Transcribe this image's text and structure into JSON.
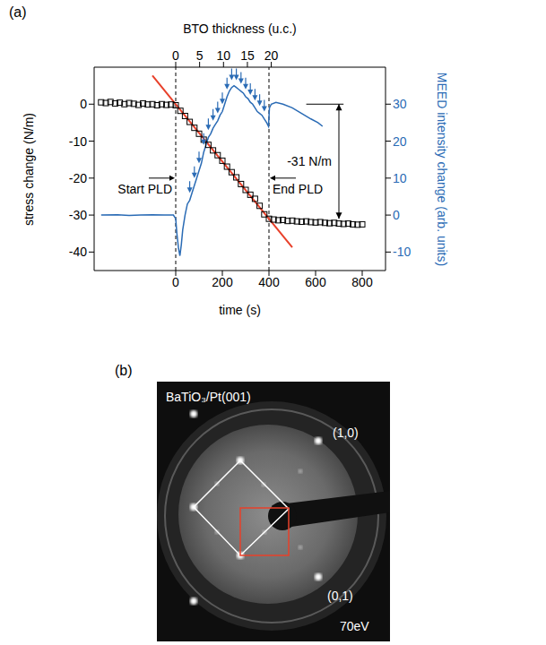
{
  "chart_data": {
    "type": "line",
    "label": "(a)",
    "x_label": "time (s)",
    "x2_label": "BTO thickness (u.c.)",
    "y_label": "stress change (N/m)",
    "y2_label": "MEED intensity change (arb. units)",
    "xlim": [
      -350,
      900
    ],
    "xticks": [
      0,
      200,
      400,
      600,
      800
    ],
    "x2lim": [
      -17.07,
      43.9
    ],
    "x2ticks": [
      0,
      5,
      10,
      15,
      20
    ],
    "ylim": [
      -45,
      10
    ],
    "yticks": [
      -40,
      -30,
      -20,
      -10,
      0
    ],
    "y2lim": [
      -15,
      40
    ],
    "y2ticks": [
      -10,
      0,
      10,
      20,
      30
    ],
    "grid": false,
    "series": [
      {
        "type": "scatter",
        "marker": "square",
        "color": "#000000",
        "x": [
          -320,
          -300,
          -280,
          -260,
          -240,
          -220,
          -200,
          -180,
          -160,
          -140,
          -120,
          -100,
          -80,
          -60,
          -40,
          -20,
          0,
          20,
          40,
          60,
          80,
          100,
          120,
          140,
          160,
          180,
          200,
          220,
          240,
          260,
          280,
          300,
          320,
          340,
          360,
          380,
          400,
          420,
          440,
          460,
          480,
          500,
          520,
          540,
          560,
          580,
          600,
          620,
          640,
          660,
          680,
          700,
          720,
          740,
          760,
          780,
          800
        ],
        "values": [
          0.5,
          0.3,
          0.6,
          0.2,
          0.4,
          0.0,
          0.3,
          0.1,
          -0.2,
          0.2,
          -0.1,
          0.0,
          -0.3,
          0.0,
          -0.2,
          -0.1,
          -0.3,
          -1.8,
          -3.2,
          -4.8,
          -6.4,
          -8.0,
          -9.6,
          -11.0,
          -12.5,
          -13.8,
          -15.3,
          -16.9,
          -18.4,
          -19.8,
          -21.6,
          -23.2,
          -24.5,
          -25.6,
          -27.5,
          -29.8,
          -31.0,
          -31.2,
          -31.4,
          -31.3,
          -31.6,
          -31.5,
          -31.7,
          -31.8,
          -31.7,
          -31.9,
          -32.0,
          -31.9,
          -32.1,
          -32.2,
          -32.1,
          -32.3,
          -32.4,
          -32.3,
          -32.5,
          -32.6,
          -32.5
        ]
      },
      {
        "type": "line",
        "line_style": "solid",
        "color": "#e8402a",
        "x": [
          -100,
          500
        ],
        "values": [
          7.75,
          -38.75
        ]
      },
      {
        "type": "line",
        "line_style": "solid",
        "axis": "y2",
        "color": "#2a6bb5",
        "x": [
          -320,
          -250,
          -200,
          -150,
          -100,
          -50,
          -10,
          0,
          5,
          12,
          18,
          24,
          30,
          40,
          50,
          60,
          70,
          80,
          90,
          100,
          110,
          120,
          130,
          140,
          150,
          160,
          170,
          180,
          190,
          200,
          210,
          220,
          230,
          240,
          250,
          260,
          270,
          280,
          290,
          300,
          310,
          320,
          330,
          340,
          350,
          360,
          370,
          380,
          390,
          398,
          402,
          410,
          430,
          460,
          500,
          540,
          580,
          610,
          630
        ],
        "values": [
          0,
          0.1,
          -0.1,
          0,
          0.1,
          0,
          0,
          -1,
          -5,
          -9,
          -11,
          -8,
          -4,
          0,
          3,
          4,
          6,
          8,
          10,
          12,
          14,
          17,
          19,
          21,
          22,
          23.5,
          24.5,
          25.5,
          27,
          28,
          30,
          32,
          33.5,
          34.5,
          35,
          34.5,
          34,
          33.5,
          33,
          32,
          31.5,
          30.5,
          30,
          29,
          28,
          27.5,
          27,
          26,
          25,
          24,
          29,
          30,
          30.5,
          30,
          29,
          27.5,
          26,
          25,
          24
        ]
      },
      {
        "type": "scatter",
        "marker": "arrow",
        "axis": "y2",
        "color": "#2a6bb5",
        "x": [
          60,
          80,
          100,
          120,
          140,
          160,
          180,
          200,
          220,
          240,
          260,
          280,
          300,
          320,
          340,
          360,
          380
        ],
        "values": [
          6,
          10,
          14,
          19,
          23,
          25.5,
          27.5,
          30,
          34,
          36.5,
          36.5,
          35.5,
          34,
          32.5,
          31,
          29.5,
          28
        ]
      }
    ],
    "vlines": [
      {
        "x": 0,
        "line_style": "dashed",
        "text": "Start PLD",
        "y": -20,
        "side": "left"
      },
      {
        "x": 400,
        "line_style": "dashed",
        "text": "End PLD",
        "y": -20,
        "side": "right"
      }
    ],
    "annotations": [
      {
        "text": "-31 N/m",
        "x": 700,
        "from": 0,
        "to": -31,
        "line_from": 560,
        "line_to": 720
      }
    ]
  },
  "panel_b": {
    "label": "(b)",
    "title": "BaTiO₃/Pt(001)",
    "spot_labels": [
      "(1,0)",
      "(0,1)"
    ],
    "energy": "70eV"
  }
}
